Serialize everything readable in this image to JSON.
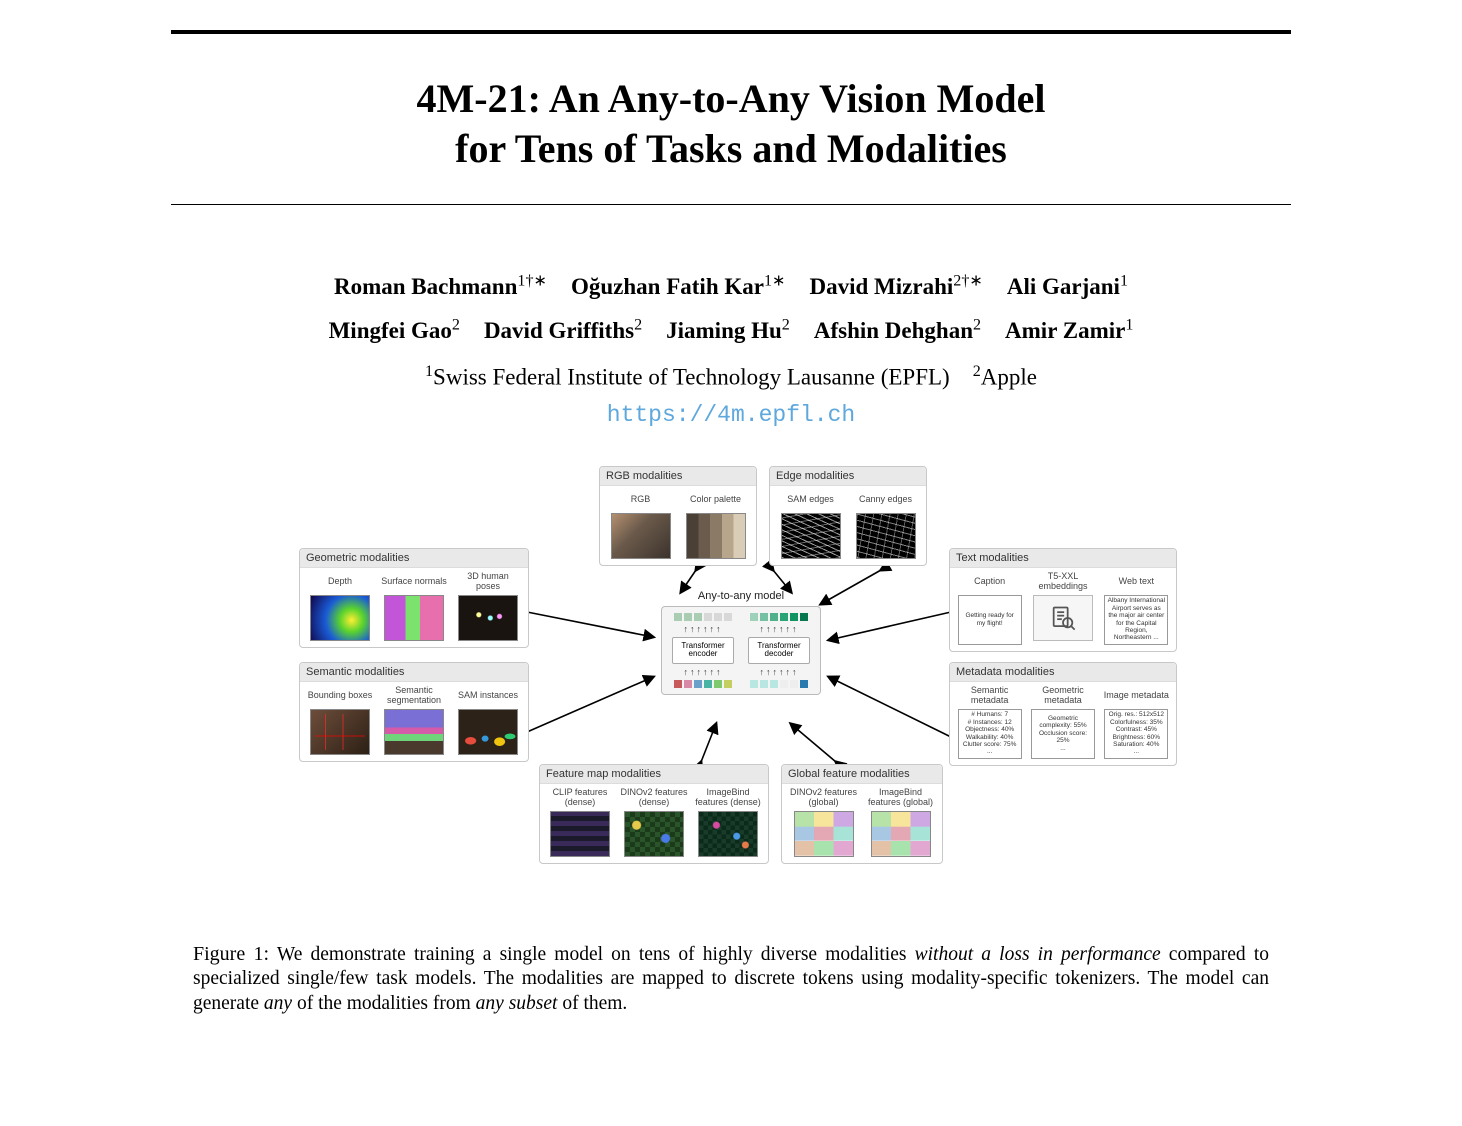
{
  "title_line1": "4M-21: An Any-to-Any Vision Model",
  "title_line2": "for Tens of Tasks and Modalities",
  "authors": [
    {
      "name": "Roman Bachmann",
      "aff": "1†∗"
    },
    {
      "name": "Oğuzhan Fatih Kar",
      "aff": "1∗"
    },
    {
      "name": "David Mizrahi",
      "aff": "2†∗"
    },
    {
      "name": "Ali Garjani",
      "aff": "1"
    },
    {
      "name": "Mingfei Gao",
      "aff": "2"
    },
    {
      "name": "David Griffiths",
      "aff": "2"
    },
    {
      "name": "Jiaming Hu",
      "aff": "2"
    },
    {
      "name": "Afshin Dehghan",
      "aff": "2"
    },
    {
      "name": "Amir Zamir",
      "aff": "1"
    }
  ],
  "affiliations": [
    {
      "num": "1",
      "text": "Swiss Federal Institute of Technology Lausanne (EPFL)"
    },
    {
      "num": "2",
      "text": "Apple"
    }
  ],
  "url": "https://4m.epfl.ch",
  "link_color": "#5fa8dd",
  "figure": {
    "center": {
      "title": "Any-to-any model",
      "encoder": "Transformer\nencoder",
      "decoder": "Transformer\ndecoder",
      "enc_top_colors": [
        "#a9cdb3",
        "#a9cdb3",
        "#a9cdb3",
        "#d8d8d8",
        "#d8d8d8",
        "#d8d8d8"
      ],
      "dec_top_colors": [
        "#9fd0ba",
        "#76c1a4",
        "#4fb28d",
        "#2aa377",
        "#0f9462",
        "#06774e"
      ],
      "enc_bot_colors": [
        "#c65a5a",
        "#d889a5",
        "#6aa0c9",
        "#49b3a4",
        "#7fc96e",
        "#c4cf61"
      ],
      "dec_bot_colors": [
        "#b7e7e0",
        "#b7e7e0",
        "#b7e7e0",
        "#eeeeee",
        "#eeeeee",
        "#2a7ab0"
      ]
    },
    "panels": {
      "rgb": {
        "title": "RGB modalities",
        "cols": [
          {
            "label": "RGB",
            "thumb": "th-rgb"
          },
          {
            "label": "Color palette",
            "thumb": "th-palette"
          }
        ]
      },
      "edge": {
        "title": "Edge modalities",
        "cols": [
          {
            "label": "SAM edges",
            "thumb": "th-edge1"
          },
          {
            "label": "Canny edges",
            "thumb": "th-edge2"
          }
        ]
      },
      "geom": {
        "title": "Geometric modalities",
        "cols": [
          {
            "label": "Depth",
            "thumb": "th-depth"
          },
          {
            "label": "Surface\nnormals",
            "thumb": "th-normal"
          },
          {
            "label": "3D human\nposes",
            "thumb": "th-pose"
          }
        ]
      },
      "sem": {
        "title": "Semantic modalities",
        "cols": [
          {
            "label": "Bounding\nboxes",
            "thumb": "th-bbox"
          },
          {
            "label": "Semantic\nsegmentation",
            "thumb": "th-semseg"
          },
          {
            "label": "SAM\ninstances",
            "thumb": "th-sam"
          }
        ]
      },
      "feat": {
        "title": "Feature map modalities",
        "cols": [
          {
            "label": "CLIP features\n(dense)",
            "thumb": "th-feat1"
          },
          {
            "label": "DINOv2\nfeatures\n(dense)",
            "thumb": "th-feat2"
          },
          {
            "label": "ImageBind\nfeatures\n(dense)",
            "thumb": "th-feat3"
          }
        ]
      },
      "glob": {
        "title": "Global feature modalities",
        "cols": [
          {
            "label": "DINOv2\nfeatures\n(global)",
            "thumb": "th-global"
          },
          {
            "label": "ImageBind\nfeatures\n(global)",
            "thumb": "th-global"
          }
        ]
      },
      "text": {
        "title": "Text modalities",
        "cols": [
          {
            "label": "Caption",
            "text": "Getting ready for my flight!"
          },
          {
            "label": "T5-XXL\nembeddings",
            "doc": true
          },
          {
            "label": "Web text",
            "text": "Albany International Airport serves as the major air center for the Capital Region, Northeastern ..."
          }
        ]
      },
      "meta": {
        "title": "Metadata modalities",
        "cols": [
          {
            "label": "Semantic\nmetadata",
            "text": "# Humans: 7\n# Instances: 12\nObjectness: 40%\nWalkability: 40%\nClutter score: 75%\n..."
          },
          {
            "label": "Geometric\nmetadata",
            "text": "Geometric complexity: 55%\nOcclusion score: 25%\n..."
          },
          {
            "label": "Image\nmetadata",
            "text": "Orig. res.: 512x512\nColorfulness: 35%\nContrast: 45%\nBrightness: 60%\nSaturation: 40%\n..."
          }
        ]
      }
    }
  },
  "caption": {
    "lead": "Figure 1:",
    "body_parts": [
      " We demonstrate training a single model on tens of highly diverse modalities ",
      "without a loss in performance",
      " compared to specialized single/few task models. The modalities are mapped to discrete tokens using modality-specific tokenizers. The model can generate ",
      "any",
      " of the modalities from ",
      "any subset",
      " of them."
    ]
  }
}
